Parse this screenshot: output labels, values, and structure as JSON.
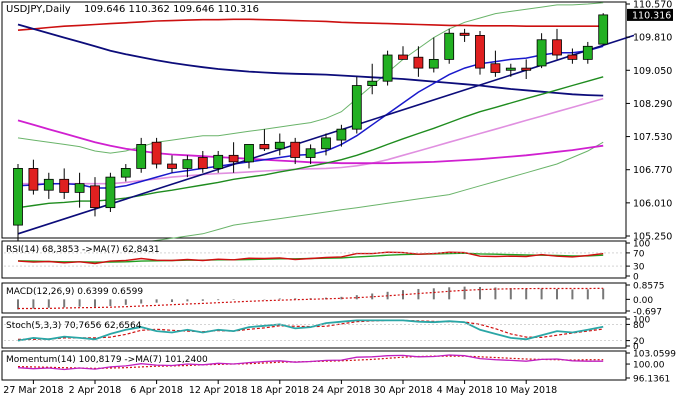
{
  "chart_data": {
    "type": "candlestick",
    "title": "USDJPY,Daily",
    "ohlc_readout": "109.646 110.362 109.646 110.316",
    "current_price_label": "110.316",
    "x_ticks": [
      "27 Mar 2018",
      "2 Apr 2018",
      "6 Apr 2018",
      "12 Apr 2018",
      "18 Apr 2018",
      "24 Apr 2018",
      "30 Apr 2018",
      "4 May 2018",
      "10 May 2018"
    ],
    "y_ticks": [
      "110.570",
      "109.810",
      "109.050",
      "108.290",
      "107.530",
      "106.770",
      "106.010",
      "105.250"
    ],
    "ylim": [
      105.25,
      110.57
    ],
    "colors": {
      "bull": "#22b022",
      "bear": "#e02020",
      "ma_red": "#cc1010",
      "ma_navy": "#0c0c7a",
      "ma_blue": "#1a1acc",
      "ma_green": "#1f8c1f",
      "bollinger": "#6ab46a",
      "pink": "#e090e0",
      "magenta": "#d020d0",
      "trendline": "#0c0c7a"
    },
    "candles": [
      {
        "date": "26 Mar",
        "o": 105.5,
        "h": 106.9,
        "l": 105.1,
        "c": 106.8
      },
      {
        "date": "27 Mar",
        "o": 106.8,
        "h": 107.0,
        "l": 106.2,
        "c": 106.3
      },
      {
        "date": "28 Mar",
        "o": 106.3,
        "h": 106.7,
        "l": 106.1,
        "c": 106.55
      },
      {
        "date": "29 Mar",
        "o": 106.55,
        "h": 106.8,
        "l": 106.1,
        "c": 106.25
      },
      {
        "date": "30 Mar",
        "o": 106.25,
        "h": 106.7,
        "l": 105.9,
        "c": 106.45
      },
      {
        "date": "2 Apr",
        "o": 106.4,
        "h": 106.6,
        "l": 105.7,
        "c": 105.9
      },
      {
        "date": "3 Apr",
        "o": 105.9,
        "h": 106.7,
        "l": 105.8,
        "c": 106.6
      },
      {
        "date": "4 Apr",
        "o": 106.6,
        "h": 106.9,
        "l": 106.5,
        "c": 106.8
      },
      {
        "date": "5 Apr",
        "o": 106.8,
        "h": 107.5,
        "l": 106.7,
        "c": 107.35
      },
      {
        "date": "6 Apr",
        "o": 107.4,
        "h": 107.5,
        "l": 106.8,
        "c": 106.9
      },
      {
        "date": "9 Apr",
        "o": 106.9,
        "h": 107.1,
        "l": 106.7,
        "c": 106.8
      },
      {
        "date": "10 Apr",
        "o": 106.8,
        "h": 107.1,
        "l": 106.6,
        "c": 107.0
      },
      {
        "date": "11 Apr",
        "o": 107.05,
        "h": 107.2,
        "l": 106.7,
        "c": 106.8
      },
      {
        "date": "12 Apr",
        "o": 106.8,
        "h": 107.2,
        "l": 106.7,
        "c": 107.1
      },
      {
        "date": "13 Apr",
        "o": 107.1,
        "h": 107.4,
        "l": 106.7,
        "c": 106.95
      },
      {
        "date": "16 Apr",
        "o": 106.95,
        "h": 107.3,
        "l": 106.8,
        "c": 107.35
      },
      {
        "date": "17 Apr",
        "o": 107.35,
        "h": 107.7,
        "l": 107.2,
        "c": 107.25
      },
      {
        "date": "18 Apr",
        "o": 107.25,
        "h": 107.6,
        "l": 107.1,
        "c": 107.4
      },
      {
        "date": "19 Apr",
        "o": 107.4,
        "h": 107.5,
        "l": 106.9,
        "c": 107.05
      },
      {
        "date": "20 Apr",
        "o": 107.05,
        "h": 107.35,
        "l": 106.9,
        "c": 107.25
      },
      {
        "date": "23 Apr",
        "o": 107.25,
        "h": 107.6,
        "l": 107.1,
        "c": 107.5
      },
      {
        "date": "24 Apr",
        "o": 107.45,
        "h": 107.8,
        "l": 107.3,
        "c": 107.7
      },
      {
        "date": "25 Apr",
        "o": 107.7,
        "h": 108.9,
        "l": 107.6,
        "c": 108.7
      },
      {
        "date": "26 Apr",
        "o": 108.7,
        "h": 109.2,
        "l": 108.5,
        "c": 108.8
      },
      {
        "date": "27 Apr",
        "o": 108.8,
        "h": 109.5,
        "l": 108.7,
        "c": 109.4
      },
      {
        "date": "30 Apr",
        "o": 109.4,
        "h": 109.6,
        "l": 109.3,
        "c": 109.3
      },
      {
        "date": "1 May",
        "o": 109.35,
        "h": 109.6,
        "l": 108.9,
        "c": 109.1
      },
      {
        "date": "2 May",
        "o": 109.1,
        "h": 109.8,
        "l": 109.0,
        "c": 109.3
      },
      {
        "date": "3 May",
        "o": 109.3,
        "h": 110.0,
        "l": 109.2,
        "c": 109.9
      },
      {
        "date": "4 May",
        "o": 109.9,
        "h": 110.0,
        "l": 109.7,
        "c": 109.85
      },
      {
        "date": "7 May",
        "o": 109.85,
        "h": 109.95,
        "l": 108.95,
        "c": 109.1
      },
      {
        "date": "8 May",
        "o": 109.2,
        "h": 109.5,
        "l": 108.9,
        "c": 109.0
      },
      {
        "date": "9 May",
        "o": 109.05,
        "h": 109.2,
        "l": 108.9,
        "c": 109.1
      },
      {
        "date": "10 May",
        "o": 109.1,
        "h": 109.3,
        "l": 108.85,
        "c": 109.05
      },
      {
        "date": "11 May",
        "o": 109.15,
        "h": 109.9,
        "l": 109.1,
        "c": 109.75
      },
      {
        "date": "14 May",
        "o": 109.75,
        "h": 110.0,
        "l": 109.3,
        "c": 109.4
      },
      {
        "date": "15 May",
        "o": 109.4,
        "h": 109.55,
        "l": 109.2,
        "c": 109.3
      },
      {
        "date": "16 May",
        "o": 109.3,
        "h": 109.7,
        "l": 109.2,
        "c": 109.6
      },
      {
        "date": "17 May",
        "o": 109.65,
        "h": 110.36,
        "l": 109.65,
        "c": 110.32
      }
    ],
    "ma_red": [
      109.97,
      110.0,
      110.03,
      110.06,
      110.08,
      110.1,
      110.12,
      110.14,
      110.16,
      110.18,
      110.19,
      110.2,
      110.21,
      110.21,
      110.22,
      110.22,
      110.21,
      110.2,
      110.19,
      110.18,
      110.17,
      110.15,
      110.14,
      110.13,
      110.12,
      110.11,
      110.1,
      110.09,
      110.08,
      110.08,
      110.07,
      110.07,
      110.07,
      110.06,
      110.06,
      110.06,
      110.06,
      110.06,
      110.06
    ],
    "ma_navy": [
      110.1,
      110.0,
      109.9,
      109.8,
      109.7,
      109.6,
      109.5,
      109.42,
      109.35,
      109.28,
      109.22,
      109.17,
      109.12,
      109.08,
      109.05,
      109.02,
      109.0,
      108.98,
      108.97,
      108.96,
      108.95,
      108.93,
      108.91,
      108.89,
      108.87,
      108.85,
      108.82,
      108.79,
      108.76,
      108.73,
      108.7,
      108.66,
      108.62,
      108.59,
      108.56,
      108.53,
      108.5,
      108.48,
      108.47
    ],
    "ma_blue": [
      106.4,
      106.42,
      106.45,
      106.45,
      106.43,
      106.35,
      106.35,
      106.4,
      106.5,
      106.6,
      106.7,
      106.75,
      106.8,
      106.85,
      106.9,
      106.95,
      107.0,
      107.05,
      107.1,
      107.12,
      107.2,
      107.35,
      107.55,
      107.8,
      108.05,
      108.3,
      108.55,
      108.75,
      108.95,
      109.1,
      109.2,
      109.25,
      109.3,
      109.33,
      109.4,
      109.45,
      109.45,
      109.5,
      109.6
    ],
    "ma_green": [
      105.9,
      105.95,
      106.0,
      106.02,
      106.05,
      106.05,
      106.08,
      106.12,
      106.18,
      106.25,
      106.3,
      106.36,
      106.42,
      106.48,
      106.55,
      106.6,
      106.65,
      106.72,
      106.78,
      106.85,
      106.92,
      107.0,
      107.1,
      107.22,
      107.35,
      107.48,
      107.6,
      107.72,
      107.85,
      107.98,
      108.1,
      108.2,
      108.3,
      108.4,
      108.5,
      108.6,
      108.7,
      108.8,
      108.9
    ],
    "boll_upper": [
      107.5,
      107.45,
      107.4,
      107.35,
      107.3,
      107.2,
      107.15,
      107.2,
      107.3,
      107.4,
      107.45,
      107.5,
      107.55,
      107.55,
      107.6,
      107.65,
      107.7,
      107.75,
      107.8,
      107.85,
      107.95,
      108.1,
      108.4,
      108.7,
      109.0,
      109.3,
      109.55,
      109.8,
      110.0,
      110.15,
      110.25,
      110.35,
      110.4,
      110.45,
      110.5,
      110.55,
      110.55,
      110.57,
      110.6
    ],
    "boll_lower": [
      104.8,
      104.85,
      104.9,
      104.95,
      104.95,
      104.95,
      105.0,
      105.05,
      105.1,
      105.15,
      105.2,
      105.25,
      105.3,
      105.4,
      105.5,
      105.55,
      105.6,
      105.65,
      105.7,
      105.75,
      105.8,
      105.85,
      105.9,
      105.95,
      106.0,
      106.05,
      106.1,
      106.15,
      106.2,
      106.3,
      106.4,
      106.5,
      106.6,
      106.7,
      106.8,
      106.9,
      107.05,
      107.2,
      107.4
    ],
    "ma_pink": [
      106.45,
      106.45,
      106.45,
      106.45,
      106.45,
      106.45,
      106.45,
      106.48,
      106.52,
      106.56,
      106.6,
      106.63,
      106.66,
      106.68,
      106.7,
      106.72,
      106.74,
      106.76,
      106.78,
      106.79,
      106.8,
      106.82,
      106.86,
      106.92,
      107.0,
      107.1,
      107.2,
      107.3,
      107.4,
      107.5,
      107.6,
      107.7,
      107.8,
      107.9,
      108.0,
      108.1,
      108.2,
      108.3,
      108.4
    ],
    "ma_magenta": [
      107.9,
      107.8,
      107.7,
      107.6,
      107.5,
      107.4,
      107.32,
      107.25,
      107.2,
      107.15,
      107.12,
      107.1,
      107.08,
      107.06,
      107.04,
      107.02,
      107.0,
      106.98,
      106.96,
      106.94,
      106.93,
      106.92,
      106.92,
      106.92,
      106.92,
      106.93,
      106.94,
      106.95,
      106.97,
      106.99,
      107.01,
      107.04,
      107.07,
      107.1,
      107.14,
      107.18,
      107.22,
      107.27,
      107.32
    ],
    "trendline": {
      "from_index": 0,
      "from_value": 105.3,
      "to_index": 40,
      "to_value": 109.85
    },
    "rsi": {
      "label": "RSI(14) 68,3853  ->MA(7) 62,8431",
      "y_ticks": [
        "100",
        "70",
        "30",
        "0"
      ],
      "ylim": [
        0,
        100
      ],
      "rsi": [
        45,
        42,
        44,
        40,
        43,
        38,
        45,
        47,
        53,
        48,
        47,
        50,
        47,
        51,
        49,
        54,
        53,
        55,
        50,
        53,
        56,
        58,
        68,
        68,
        72,
        71,
        66,
        68,
        72,
        71,
        60,
        59,
        60,
        59,
        65,
        60,
        58,
        62,
        68
      ],
      "ma": [
        46,
        45,
        44,
        43,
        43,
        42,
        42,
        43,
        45,
        46,
        47,
        48,
        48,
        49,
        49,
        50,
        51,
        52,
        52,
        53,
        54,
        55,
        58,
        60,
        63,
        65,
        66,
        67,
        68,
        69,
        67,
        66,
        65,
        64,
        63,
        62,
        61,
        61,
        63
      ]
    },
    "macd": {
      "label": "MACD(12,26,9) 0.6399 0.6599",
      "y_ticks": [
        "0.8575",
        "0.00",
        "-0.697"
      ],
      "ylim": [
        -0.697,
        0.8575
      ],
      "hist": [
        -0.6,
        -0.55,
        -0.5,
        -0.48,
        -0.44,
        -0.45,
        -0.4,
        -0.33,
        -0.25,
        -0.2,
        -0.16,
        -0.12,
        -0.09,
        -0.05,
        -0.03,
        0.0,
        0.02,
        0.05,
        0.06,
        0.07,
        0.1,
        0.15,
        0.25,
        0.35,
        0.45,
        0.55,
        0.62,
        0.66,
        0.72,
        0.76,
        0.74,
        0.71,
        0.67,
        0.63,
        0.64,
        0.62,
        0.59,
        0.6,
        0.64
      ],
      "signal": [
        -0.55,
        -0.55,
        -0.54,
        -0.52,
        -0.5,
        -0.49,
        -0.47,
        -0.44,
        -0.4,
        -0.36,
        -0.32,
        -0.28,
        -0.24,
        -0.2,
        -0.16,
        -0.12,
        -0.08,
        -0.05,
        -0.02,
        0.0,
        0.03,
        0.06,
        0.1,
        0.15,
        0.21,
        0.28,
        0.35,
        0.41,
        0.48,
        0.54,
        0.58,
        0.61,
        0.63,
        0.64,
        0.65,
        0.65,
        0.65,
        0.65,
        0.66
      ]
    },
    "stoch": {
      "label": "Stoch(5,3,3) 70,7656 62,6564",
      "y_ticks": [
        "100",
        "80",
        "20",
        "0"
      ],
      "ylim": [
        0,
        100
      ],
      "k": [
        20,
        30,
        25,
        35,
        30,
        25,
        45,
        60,
        70,
        55,
        50,
        60,
        50,
        60,
        55,
        70,
        75,
        80,
        65,
        70,
        85,
        90,
        95,
        95,
        95,
        95,
        90,
        88,
        92,
        88,
        60,
        45,
        30,
        25,
        40,
        55,
        50,
        60,
        71
      ],
      "d": [
        25,
        25,
        26,
        30,
        30,
        30,
        33,
        43,
        58,
        62,
        58,
        55,
        53,
        57,
        55,
        62,
        67,
        75,
        73,
        72,
        73,
        82,
        90,
        93,
        95,
        95,
        93,
        91,
        90,
        89,
        80,
        64,
        45,
        33,
        32,
        40,
        48,
        55,
        63
      ]
    },
    "momentum": {
      "label": "Momentum(14) 100,8179  ->MA(7) 101,2400",
      "y_ticks": [
        "103.0599",
        "100.00",
        "96.1361"
      ],
      "ylim": [
        96.1361,
        103.0599
      ],
      "mom": [
        99.0,
        98.7,
        98.9,
        98.5,
        98.9,
        98.6,
        99.2,
        99.5,
        100.1,
        99.7,
        99.6,
        100.0,
        99.8,
        100.2,
        100.0,
        100.4,
        100.7,
        100.9,
        100.5,
        100.7,
        101.0,
        101.1,
        101.9,
        102.0,
        102.3,
        102.4,
        102.0,
        102.1,
        102.5,
        102.3,
        101.5,
        101.2,
        101.0,
        100.8,
        101.3,
        101.4,
        100.9,
        100.8,
        100.8
      ],
      "ma": [
        99.3,
        99.2,
        99.1,
        99.0,
        98.9,
        98.8,
        98.9,
        99.0,
        99.2,
        99.4,
        99.5,
        99.6,
        99.8,
        99.9,
        100.0,
        100.1,
        100.3,
        100.5,
        100.6,
        100.7,
        100.8,
        100.9,
        101.1,
        101.3,
        101.6,
        101.9,
        102.1,
        102.2,
        102.2,
        102.2,
        102.0,
        101.8,
        101.6,
        101.4,
        101.3,
        101.2,
        101.1,
        101.2,
        101.2
      ]
    }
  }
}
